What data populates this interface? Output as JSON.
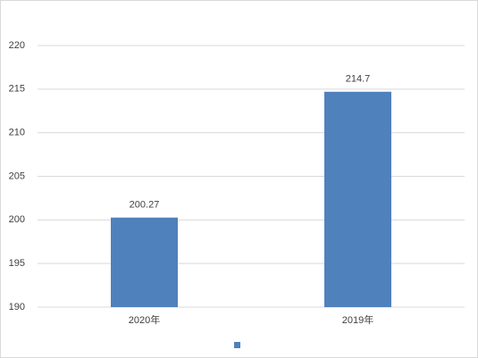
{
  "chart_data": {
    "type": "bar",
    "categories": [
      "2020年",
      "2019年"
    ],
    "values": [
      200.27,
      214.7
    ],
    "color": "#4f81bd",
    "ylim": [
      190,
      220
    ],
    "yticks": [
      190,
      195,
      200,
      205,
      210,
      215,
      220
    ],
    "grid": true,
    "data_labels": true,
    "legend": "bottom"
  }
}
